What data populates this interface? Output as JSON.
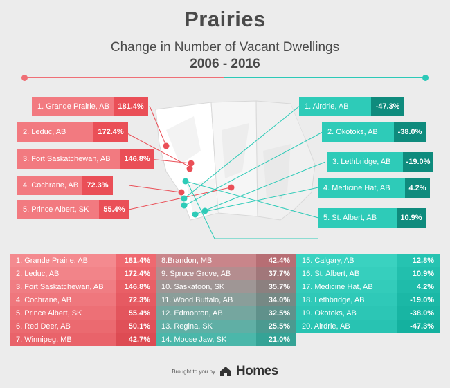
{
  "header": {
    "title": "Prairies",
    "subtitle": "Change in Number of Vacant Dwellings",
    "years": "2006 - 2016"
  },
  "callouts_left": [
    {
      "label": "1. Grande Prairie, AB",
      "value": "181.4%"
    },
    {
      "label": "2. Leduc, AB",
      "value": "172.4%"
    },
    {
      "label": "3. Fort Saskatchewan, AB",
      "value": "146.8%"
    },
    {
      "label": "4. Cochrane, AB",
      "value": "72.3%"
    },
    {
      "label": "5. Prince Albert, SK",
      "value": "55.4%"
    }
  ],
  "callouts_right": [
    {
      "label": "1. Airdrie, AB",
      "value": "-47.3%"
    },
    {
      "label": "2. Okotoks, AB",
      "value": "-38.0%"
    },
    {
      "label": "3. Lethbridge, AB",
      "value": "-19.0%"
    },
    {
      "label": "4. Medicine Hat, AB",
      "value": "4.2%"
    },
    {
      "label": "5. St. Albert, AB",
      "value": "10.9%"
    }
  ],
  "table": {
    "col1": [
      {
        "label": "1. Grande Prairie, AB",
        "value": "181.4%"
      },
      {
        "label": "2. Leduc, AB",
        "value": "172.4%"
      },
      {
        "label": "3. Fort Saskatchewan, AB",
        "value": "146.8%"
      },
      {
        "label": "4. Cochrane, AB",
        "value": "72.3%"
      },
      {
        "label": "5. Prince Albert, SK",
        "value": "55.4%"
      },
      {
        "label": "6. Red Deer, AB",
        "value": "50.1%"
      },
      {
        "label": "7. Winnipeg, MB",
        "value": "42.7%"
      }
    ],
    "col2": [
      {
        "label": "8.Brandon, MB",
        "value": "42.4%"
      },
      {
        "label": "9. Spruce Grove, AB",
        "value": "37.7%"
      },
      {
        "label": "10. Saskatoon, SK",
        "value": "35.7%"
      },
      {
        "label": "11. Wood Buffalo, AB",
        "value": "34.0%"
      },
      {
        "label": "12. Edmonton, AB",
        "value": "32.5%"
      },
      {
        "label": "13. Regina, SK",
        "value": "25.5%"
      },
      {
        "label": "14. Moose Jaw, SK",
        "value": "21.0%"
      }
    ],
    "col3": [
      {
        "label": "15. Calgary, AB",
        "value": "12.8%"
      },
      {
        "label": "16. St. Albert, AB",
        "value": "10.9%"
      },
      {
        "label": "17. Medicine Hat, AB",
        "value": "4.2%"
      },
      {
        "label": "18. Lethbridge, AB",
        "value": "-19.0%"
      },
      {
        "label": "19. Okotoks, AB",
        "value": "-38.0%"
      },
      {
        "label": "20. Airdrie, AB",
        "value": "-47.3%"
      }
    ]
  },
  "footer": {
    "brought": "Brought to you by",
    "brand": "Homes"
  },
  "colors": {
    "red": "#ea4f57",
    "red_light": "#f27a80",
    "teal": "#15a796",
    "teal_light": "#2ecbb8"
  }
}
